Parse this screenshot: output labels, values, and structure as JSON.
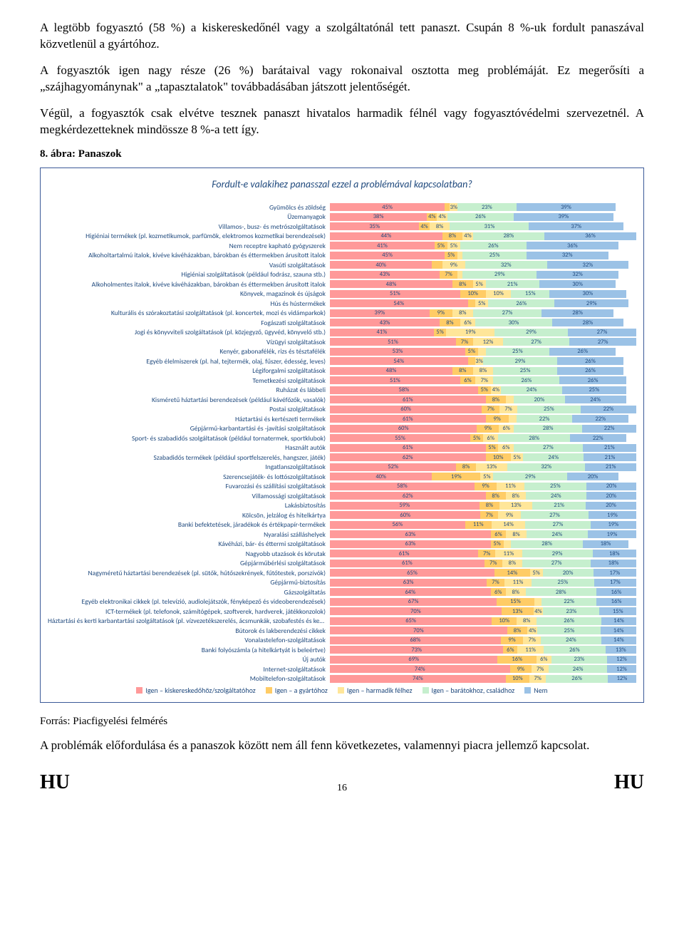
{
  "paragraphs": {
    "p1": "A legtöbb fogyasztó (58 %) a kiskereskedőnél vagy a szolgáltatónál tett panaszt. Csupán 8 %-uk fordult panaszával közvetlenül a gyártóhoz.",
    "p2": "A fogyasztók igen nagy része (26 %) barátaival vagy rokonaival osztotta meg problémáját. Ez megerősíti a „szájhagyománynak\" a „tapasztalatok\" továbbadásában játszott jelentőségét.",
    "p3": "Végül, a fogyasztók csak elvétve tesznek panaszt hivatalos harmadik félnél vagy fogyasztóvédelmi szervezetnél. A megkérdezetteknek mindössze 8 %-a tett így.",
    "caption": "8. ábra: Panaszok",
    "source": "Forrás: Piacfigyelési felmérés",
    "closing": "A problémák előfordulása és a panaszok között nem áll fenn következetes, valamennyi piacra jellemző kapcsolat."
  },
  "footer": {
    "left": "HU",
    "page": "16",
    "right": "HU"
  },
  "chart": {
    "title": "Fordult-e valakihez panasszal ezzel a problémával kapcsolatban?",
    "colors": [
      "#ff9999",
      "#ffcc66",
      "#ffe699",
      "#c6efce",
      "#9bc2e6"
    ],
    "legend": [
      "Igen – kiskereskedőhöz/szolgáltatóhoz",
      "Igen – a gyártóhoz",
      "Igen – harmadik félhez",
      "Igen – barátokhoz, családhoz",
      "Nem"
    ],
    "rows": [
      {
        "label": "Gyümölcs és zöldség",
        "v": [
          45,
          2,
          3,
          23,
          39
        ],
        "hide": [
          1
        ]
      },
      {
        "label": "Üzemanyagok",
        "v": [
          38,
          4,
          4,
          26,
          39
        ],
        "hide": []
      },
      {
        "label": "Villamos-, busz- és metrószolgáltatások",
        "v": [
          35,
          4,
          8,
          31,
          37
        ],
        "hide": []
      },
      {
        "label": "Higiéniai termékek (pl. kozmetikumok, parfümök, elektromos kozmetikai berendezések)",
        "v": [
          44,
          8,
          4,
          28,
          36
        ],
        "hide": []
      },
      {
        "label": "Nem receptre kapható gyógyszerek",
        "v": [
          41,
          5,
          5,
          26,
          36
        ],
        "hide": []
      },
      {
        "label": "Alkoholtartalmú italok, kivéve kávéházakban, bárokban és éttermekben árusított italok",
        "v": [
          45,
          5,
          2,
          25,
          32
        ],
        "hide": [
          2
        ]
      },
      {
        "label": "Vasúti szolgáltatások",
        "v": [
          40,
          4,
          9,
          32,
          32
        ],
        "hide": [
          1
        ]
      },
      {
        "label": "Higiéniai szolgáltatások (például fodrász, szauna stb.)",
        "v": [
          43,
          7,
          2,
          29,
          32
        ],
        "hide": [
          2
        ]
      },
      {
        "label": "Alkoholmentes italok, kivéve kávéházakban, bárokban és éttermekben árusított italok",
        "v": [
          48,
          8,
          5,
          21,
          30
        ],
        "hide": []
      },
      {
        "label": "Könyvek, magazinok és újságok",
        "v": [
          51,
          10,
          10,
          15,
          30
        ],
        "hide": []
      },
      {
        "label": "Hús és hústermékek",
        "v": [
          54,
          3,
          5,
          26,
          29
        ],
        "hide": [
          1
        ]
      },
      {
        "label": "Kulturális és szórakoztatási szolgáltatások (pl. koncertek, mozi és vidámparkok)",
        "v": [
          39,
          9,
          8,
          27,
          28
        ],
        "hide": []
      },
      {
        "label": "Fogászati szolgáltatások",
        "v": [
          43,
          8,
          6,
          30,
          28
        ],
        "hide": []
      },
      {
        "label": "Jogi és könyvviteli szolgáltatások (pl. közjegyző, ügyvéd, könyvelő stb.)",
        "v": [
          41,
          5,
          19,
          29,
          27
        ],
        "hide": []
      },
      {
        "label": "Vízügyi szolgáltatások",
        "v": [
          51,
          7,
          12,
          27,
          27
        ],
        "hide": []
      },
      {
        "label": "Kenyér, gabonafélék, rizs és tésztafélék",
        "v": [
          53,
          5,
          3,
          25,
          26
        ],
        "hide": [
          2
        ]
      },
      {
        "label": "Egyéb élelmiszerek (pl. hal, tejtermék, olaj, fűszer, édesség, leves)",
        "v": [
          54,
          3,
          3,
          29,
          26
        ],
        "hide": [
          1
        ]
      },
      {
        "label": "Légiforgalmi szolgáltatások",
        "v": [
          48,
          8,
          8,
          25,
          26
        ],
        "hide": []
      },
      {
        "label": "Temetkezési szolgáltatások",
        "v": [
          51,
          6,
          7,
          26,
          26
        ],
        "hide": []
      },
      {
        "label": "Ruházat és lábbeli",
        "v": [
          58,
          5,
          4,
          24,
          25
        ],
        "hide": []
      },
      {
        "label": "Kisméretű háztartási berendezések (például kávéfőzők, vasalók)",
        "v": [
          61,
          8,
          3,
          20,
          24
        ],
        "hide": [
          2
        ]
      },
      {
        "label": "Postai szolgáltatások",
        "v": [
          60,
          7,
          7,
          25,
          22
        ],
        "hide": []
      },
      {
        "label": "Háztartási és kertészeti termékek",
        "v": [
          61,
          9,
          3,
          22,
          22
        ],
        "hide": [
          2
        ]
      },
      {
        "label": "Gépjármű-karbantartási és -javítási szolgáltatások",
        "v": [
          60,
          9,
          6,
          28,
          22
        ],
        "hide": []
      },
      {
        "label": "Sport- és szabadidős szolgáltatások (például tornatermek, sportklubok)",
        "v": [
          55,
          5,
          6,
          28,
          22
        ],
        "hide": []
      },
      {
        "label": "Használt autók",
        "v": [
          61,
          5,
          6,
          27,
          21
        ],
        "hide": []
      },
      {
        "label": "Szabadidős termékek (például sportfelszerelés, hangszer, játék)",
        "v": [
          62,
          10,
          5,
          24,
          21
        ],
        "hide": []
      },
      {
        "label": "Ingatlanszolgáltatások",
        "v": [
          52,
          8,
          13,
          32,
          21
        ],
        "hide": []
      },
      {
        "label": "Szerencsejáték- és lottószolgáltatások",
        "v": [
          40,
          19,
          5,
          29,
          20
        ],
        "hide": []
      },
      {
        "label": "Fuvarozási és szállítási szolgáltatások",
        "v": [
          58,
          9,
          11,
          25,
          20
        ],
        "hide": []
      },
      {
        "label": "Villamossági szolgáltatások",
        "v": [
          62,
          8,
          8,
          24,
          20
        ],
        "hide": []
      },
      {
        "label": "Lakásbiztosítás",
        "v": [
          59,
          8,
          13,
          21,
          20
        ],
        "hide": []
      },
      {
        "label": "Kölcsön, jelzálog és hitelkártya",
        "v": [
          60,
          7,
          9,
          27,
          19
        ],
        "hide": []
      },
      {
        "label": "Banki befektetések, járadékok és értékpapír-termékek",
        "v": [
          56,
          11,
          14,
          27,
          19
        ],
        "hide": []
      },
      {
        "label": "Nyaralási szálláshelyek",
        "v": [
          63,
          6,
          8,
          24,
          19
        ],
        "hide": []
      },
      {
        "label": "Kávéházi, bár- és éttermi szolgáltatások",
        "v": [
          63,
          5,
          3,
          28,
          18
        ],
        "hide": [
          2
        ]
      },
      {
        "label": "Nagyobb utazások és körutak",
        "v": [
          61,
          7,
          11,
          29,
          18
        ],
        "hide": []
      },
      {
        "label": "Gépjárműbérlési szolgáltatások",
        "v": [
          61,
          7,
          8,
          27,
          18
        ],
        "hide": []
      },
      {
        "label": "Nagyméretű háztartási berendezések (pl. sütők, hűtőszekrények, fűtőtestek, porszívók)",
        "v": [
          65,
          14,
          5,
          20,
          17
        ],
        "hide": []
      },
      {
        "label": "Gépjármű-biztosítás",
        "v": [
          63,
          7,
          11,
          25,
          17
        ],
        "hide": []
      },
      {
        "label": "Gázszolgáltatás",
        "v": [
          64,
          6,
          8,
          28,
          16
        ],
        "hide": []
      },
      {
        "label": "Egyéb elektronikai cikkek (pl. televízió, audiolejátszók, fényképező és videoberendezések)",
        "v": [
          67,
          15,
          3,
          22,
          16
        ],
        "hide": [
          2
        ]
      },
      {
        "label": "ICT-termékek (pl. telefonok, számítógépek, szoftverek, hardverek, játékkonzolok)",
        "v": [
          70,
          13,
          4,
          23,
          15
        ],
        "hide": []
      },
      {
        "label": "Háztartási és kerti karbantartási szolgáltatások (pl. vízvezetékszerelés, ácsmunkák, szobafestés és kertészkedés)",
        "v": [
          65,
          10,
          8,
          26,
          14
        ],
        "hide": []
      },
      {
        "label": "Bútorok és lakberendezési cikkek",
        "v": [
          70,
          8,
          4,
          25,
          14
        ],
        "hide": []
      },
      {
        "label": "Vonalastelefon-szolgáltatások",
        "v": [
          68,
          9,
          7,
          24,
          14
        ],
        "hide": []
      },
      {
        "label": "Banki folyószámla (a hitelkártyát is beleértve)",
        "v": [
          73,
          6,
          11,
          26,
          13
        ],
        "hide": []
      },
      {
        "label": "Új autók",
        "v": [
          69,
          16,
          6,
          23,
          12
        ],
        "hide": []
      },
      {
        "label": "Internet-szolgáltatások",
        "v": [
          74,
          9,
          7,
          24,
          12
        ],
        "hide": []
      },
      {
        "label": "Mobiltelefon-szolgáltatások",
        "v": [
          74,
          10,
          7,
          26,
          12
        ],
        "hide": []
      }
    ]
  }
}
